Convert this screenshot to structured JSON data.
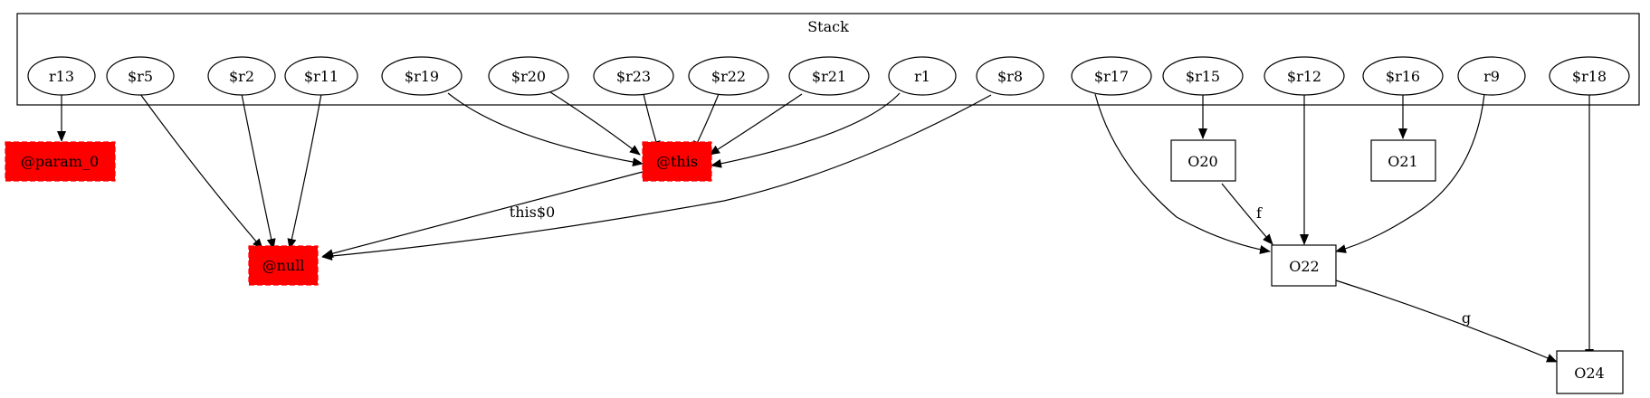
{
  "cluster": {
    "label": "Stack"
  },
  "nodes": {
    "r13": "r13",
    "r5": "$r5",
    "r2": "$r2",
    "r11": "$r11",
    "r19": "$r19",
    "r20": "$r20",
    "r23": "$r23",
    "r22": "$r22",
    "r21": "$r21",
    "r1": "r1",
    "r8": "$r8",
    "r17": "$r17",
    "r15": "$r15",
    "r12": "$r12",
    "r16": "$r16",
    "r9": "r9",
    "r18": "$r18",
    "param0": "@param_0",
    "null": "@null",
    "this": "@this",
    "O20": "O20",
    "O21": "O21",
    "O22": "O22",
    "O24": "O24"
  },
  "edges": {
    "this_to_null": "this$0",
    "O20_to_O22": "f",
    "O22_to_O24": "g"
  },
  "colors": {
    "special_fill": "#ff0000",
    "special_border": "#ff0000",
    "stroke": "#000000"
  }
}
